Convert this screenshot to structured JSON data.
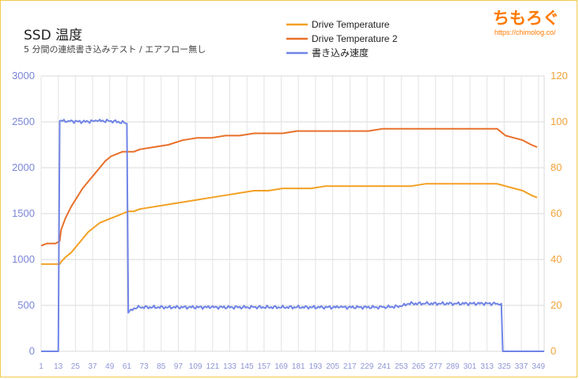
{
  "watermark": {
    "name": "ちもろぐ",
    "url": "https://chimolog.co/"
  },
  "chart_data": {
    "type": "line",
    "title": "SSD 温度",
    "subtitle": "5 分間の連続書き込みテスト / エアフロー無し",
    "x_ticks": [
      "1",
      "13",
      "25",
      "37",
      "49",
      "61",
      "73",
      "85",
      "97",
      "109",
      "121",
      "133",
      "145",
      "157",
      "169",
      "181",
      "193",
      "205",
      "217",
      "229",
      "241",
      "253",
      "265",
      "277",
      "289",
      "301",
      "313",
      "325",
      "337",
      "349"
    ],
    "xlim": [
      1,
      353
    ],
    "y_left": {
      "range": [
        0,
        3000
      ],
      "ticks": [
        "0",
        "500",
        "1000",
        "1500",
        "2000",
        "2500",
        "3000"
      ]
    },
    "y_right": {
      "range": [
        0,
        120
      ],
      "ticks": [
        "0",
        "20",
        "40",
        "60",
        "80",
        "100",
        "120"
      ]
    },
    "grid": true,
    "legend": "top-center",
    "series": [
      {
        "name": "Drive Temperature",
        "axis": "right",
        "color": "#f2a023",
        "points": [
          [
            1,
            38
          ],
          [
            14,
            38
          ],
          [
            15,
            39
          ],
          [
            18,
            41
          ],
          [
            22,
            43
          ],
          [
            26,
            46
          ],
          [
            30,
            49
          ],
          [
            34,
            52
          ],
          [
            38,
            54
          ],
          [
            42,
            56
          ],
          [
            46,
            57
          ],
          [
            50,
            58
          ],
          [
            54,
            59
          ],
          [
            58,
            60
          ],
          [
            62,
            61
          ],
          [
            66,
            61
          ],
          [
            70,
            62
          ],
          [
            80,
            63
          ],
          [
            90,
            64
          ],
          [
            100,
            65
          ],
          [
            110,
            66
          ],
          [
            120,
            67
          ],
          [
            130,
            68
          ],
          [
            140,
            69
          ],
          [
            150,
            70
          ],
          [
            160,
            70
          ],
          [
            170,
            71
          ],
          [
            180,
            71
          ],
          [
            190,
            71
          ],
          [
            200,
            72
          ],
          [
            210,
            72
          ],
          [
            220,
            72
          ],
          [
            230,
            72
          ],
          [
            240,
            72
          ],
          [
            250,
            72
          ],
          [
            260,
            72
          ],
          [
            270,
            73
          ],
          [
            280,
            73
          ],
          [
            290,
            73
          ],
          [
            300,
            73
          ],
          [
            310,
            73
          ],
          [
            320,
            73
          ],
          [
            326,
            72
          ],
          [
            332,
            71
          ],
          [
            338,
            70
          ],
          [
            344,
            68
          ],
          [
            348,
            67
          ]
        ]
      },
      {
        "name": "Drive Temperature 2",
        "axis": "right",
        "color": "#e8702a",
        "points": [
          [
            1,
            46
          ],
          [
            5,
            47
          ],
          [
            8,
            47
          ],
          [
            11,
            47
          ],
          [
            14,
            48
          ],
          [
            15,
            53
          ],
          [
            18,
            58
          ],
          [
            22,
            63
          ],
          [
            26,
            67
          ],
          [
            30,
            71
          ],
          [
            34,
            74
          ],
          [
            38,
            77
          ],
          [
            42,
            80
          ],
          [
            46,
            83
          ],
          [
            50,
            85
          ],
          [
            54,
            86
          ],
          [
            58,
            87
          ],
          [
            62,
            87
          ],
          [
            66,
            87
          ],
          [
            70,
            88
          ],
          [
            80,
            89
          ],
          [
            90,
            90
          ],
          [
            100,
            92
          ],
          [
            110,
            93
          ],
          [
            120,
            93
          ],
          [
            130,
            94
          ],
          [
            140,
            94
          ],
          [
            150,
            95
          ],
          [
            160,
            95
          ],
          [
            170,
            95
          ],
          [
            180,
            96
          ],
          [
            190,
            96
          ],
          [
            200,
            96
          ],
          [
            210,
            96
          ],
          [
            220,
            96
          ],
          [
            230,
            96
          ],
          [
            240,
            97
          ],
          [
            250,
            97
          ],
          [
            260,
            97
          ],
          [
            270,
            97
          ],
          [
            280,
            97
          ],
          [
            290,
            97
          ],
          [
            300,
            97
          ],
          [
            310,
            97
          ],
          [
            320,
            97
          ],
          [
            326,
            94
          ],
          [
            332,
            93
          ],
          [
            338,
            92
          ],
          [
            344,
            90
          ],
          [
            348,
            89
          ]
        ]
      },
      {
        "name": "書き込み速度",
        "axis": "left",
        "color": "#7084e6",
        "points": [
          [
            1,
            0
          ],
          [
            13,
            0
          ],
          [
            14,
            2510
          ],
          [
            20,
            2510
          ],
          [
            30,
            2500
          ],
          [
            40,
            2510
          ],
          [
            50,
            2510
          ],
          [
            59,
            2490
          ],
          [
            61,
            2480
          ],
          [
            62,
            420
          ],
          [
            66,
            470
          ],
          [
            70,
            480
          ],
          [
            90,
            480
          ],
          [
            120,
            480
          ],
          [
            150,
            480
          ],
          [
            180,
            480
          ],
          [
            210,
            480
          ],
          [
            240,
            480
          ],
          [
            253,
            490
          ],
          [
            258,
            520
          ],
          [
            270,
            520
          ],
          [
            290,
            520
          ],
          [
            310,
            520
          ],
          [
            320,
            520
          ],
          [
            323,
            520
          ],
          [
            324,
            0
          ],
          [
            353,
            0
          ]
        ]
      }
    ]
  }
}
